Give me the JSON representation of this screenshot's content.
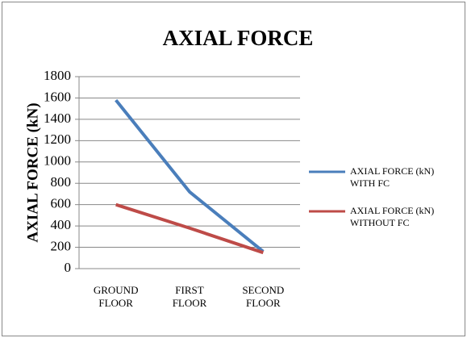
{
  "chart_data": {
    "type": "line",
    "title": "AXIAL FORCE",
    "y_label": "AXIAL FORCE (kN)",
    "categories": [
      "GROUND FLOOR",
      "FIRST FLOOR",
      "SECOND FLOOR"
    ],
    "series": [
      {
        "name": "AXIAL FORCE (kN)  WITH FC",
        "color": "#4a7ebb",
        "values": [
          1580,
          720,
          160
        ]
      },
      {
        "name": "AXIAL FORCE (kN)  WITHOUT FC",
        "color": "#be4b48",
        "values": [
          600,
          380,
          150
        ]
      }
    ],
    "ylim": [
      0,
      1800
    ],
    "yticks": [
      0,
      200,
      400,
      600,
      800,
      1000,
      1200,
      1400,
      1600,
      1800
    ],
    "grid": true,
    "legend": "right"
  }
}
